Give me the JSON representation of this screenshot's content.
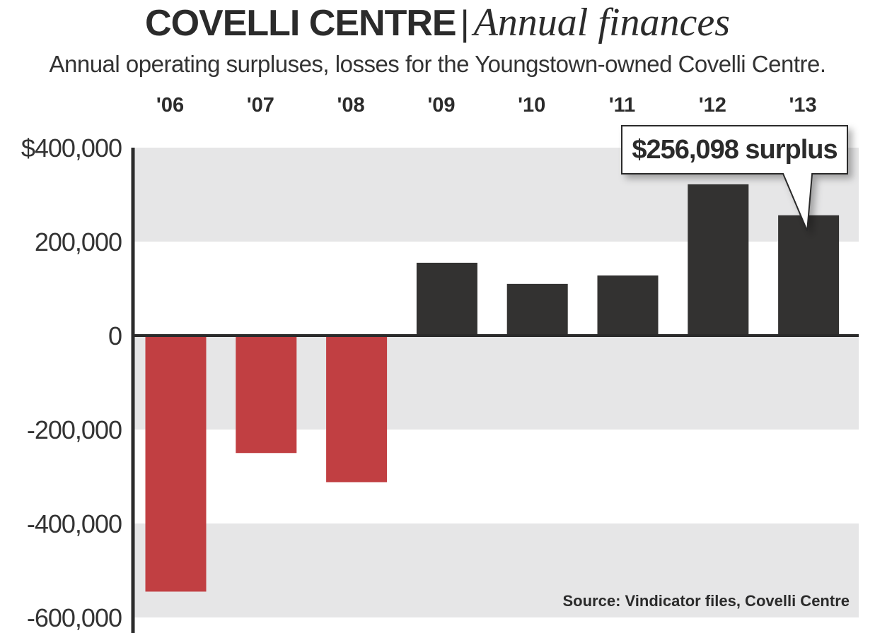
{
  "header": {
    "title_bold": "COVELLI CENTRE",
    "title_separator": "|",
    "title_italic": "Annual finances",
    "subtitle": "Annual operating surpluses, losses for the Youngstown-owned Covelli Centre."
  },
  "callout": {
    "text": "$256,098 surplus"
  },
  "source": "Source: Vindicator files, Covelli Centre",
  "colors": {
    "loss": "#c13f42",
    "surplus": "#333231",
    "band": "#e6e6e7",
    "axis": "#2b2b2b"
  },
  "chart_data": {
    "type": "bar",
    "title": "COVELLI CENTRE | Annual finances",
    "subtitle": "Annual operating surpluses, losses for the Youngstown-owned Covelli Centre.",
    "categories": [
      "'06",
      "'07",
      "'08",
      "'09",
      "'10",
      "'11",
      "'12",
      "'13"
    ],
    "values": [
      -545000,
      -250000,
      -312000,
      155000,
      110000,
      128000,
      322000,
      256098
    ],
    "ylim": [
      -600000,
      400000
    ],
    "yticks": [
      400000,
      200000,
      0,
      -200000,
      -400000,
      -600000
    ],
    "ytick_labels": [
      "$400,000",
      "200,000",
      "0",
      "-200,000",
      "-400,000",
      "-600,000"
    ],
    "x_labels_position": "top",
    "grid": "alternating horizontal bands",
    "legend": "none",
    "annotations": [
      {
        "category": "'13",
        "text": "$256,098 surplus"
      }
    ]
  }
}
